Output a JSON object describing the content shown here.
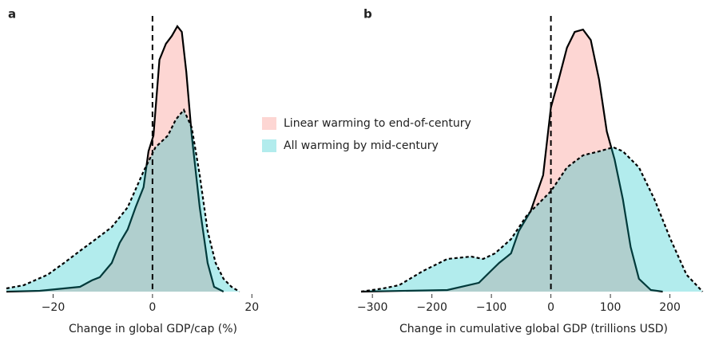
{
  "charts": [
    {
      "type": "density",
      "panel_label": "a",
      "xlabel": "Change in global GDP/cap (%)",
      "xlim": [
        -29.4,
        29.6
      ],
      "ylim": [
        0,
        1
      ],
      "xticks": [
        {
          "value": -20,
          "label": "−20"
        },
        0,
        20
      ],
      "vline": 0,
      "legend": "center-right",
      "series": [
        {
          "name": "Linear warming to end-of-century",
          "color": "#f8766d",
          "linestyle": "solid",
          "x": [
            -29.4,
            -22.7,
            -14.6,
            -12.2,
            -10.6,
            -8.2,
            -6.6,
            -5.0,
            -3.4,
            -1.8,
            -0.8,
            0.2,
            1.4,
            2.7,
            3.9,
            5.0,
            5.9,
            6.8,
            7.9,
            9.5,
            11.1,
            12.4,
            14.3
          ],
          "values": [
            0,
            0.003,
            0.018,
            0.042,
            0.054,
            0.107,
            0.182,
            0.232,
            0.315,
            0.39,
            0.524,
            0.583,
            0.866,
            0.926,
            0.955,
            0.991,
            0.97,
            0.821,
            0.583,
            0.315,
            0.107,
            0.018,
            0
          ]
        },
        {
          "name": "All warming by mid-century",
          "color": "#00bfc4",
          "linestyle": "dashed",
          "x": [
            -29.4,
            -25.9,
            -21.1,
            -17.8,
            -14.6,
            -11.4,
            -8.2,
            -5.0,
            -1.8,
            0.6,
            3.1,
            4.7,
            6.3,
            7.9,
            9.5,
            11.1,
            12.7,
            14.3,
            15.9,
            17.5
          ],
          "values": [
            0.012,
            0.024,
            0.063,
            0.107,
            0.152,
            0.196,
            0.241,
            0.315,
            0.449,
            0.539,
            0.583,
            0.643,
            0.679,
            0.613,
            0.435,
            0.226,
            0.107,
            0.048,
            0.018,
            0
          ]
        }
      ]
    },
    {
      "type": "density",
      "panel_label": "b",
      "xlabel": "Change in cumulative global GDP (trillions USD)",
      "xlim": [
        -319,
        261
      ],
      "ylim": [
        0,
        1
      ],
      "xticks": [
        {
          "value": -300,
          "label": "−300"
        },
        {
          "value": -200,
          "label": "−200"
        },
        {
          "value": -100,
          "label": "−100"
        },
        0,
        100,
        200
      ],
      "vline": 0,
      "series": [
        {
          "color": "#f8766d",
          "linestyle": "solid",
          "x": [
            -319,
            -174,
            -121,
            -101,
            -87,
            -67,
            -54,
            -34,
            -13,
            0,
            13,
            27,
            40,
            54,
            67,
            81,
            94,
            107,
            121,
            134,
            148,
            168,
            188
          ],
          "values": [
            0,
            0.006,
            0.033,
            0.077,
            0.107,
            0.143,
            0.226,
            0.301,
            0.435,
            0.688,
            0.792,
            0.911,
            0.97,
            0.979,
            0.94,
            0.792,
            0.598,
            0.494,
            0.345,
            0.167,
            0.048,
            0.006,
            0
          ]
        },
        {
          "color": "#00bfc4",
          "linestyle": "dashed",
          "x": [
            -319,
            -282,
            -255,
            -215,
            -174,
            -134,
            -114,
            -94,
            -67,
            -40,
            0,
            27,
            54,
            81,
            105,
            121,
            148,
            174,
            201,
            228,
            255
          ],
          "values": [
            0,
            0.012,
            0.024,
            0.077,
            0.122,
            0.131,
            0.122,
            0.143,
            0.196,
            0.286,
            0.375,
            0.464,
            0.509,
            0.524,
            0.539,
            0.524,
            0.464,
            0.345,
            0.196,
            0.063,
            0
          ]
        }
      ]
    }
  ]
}
